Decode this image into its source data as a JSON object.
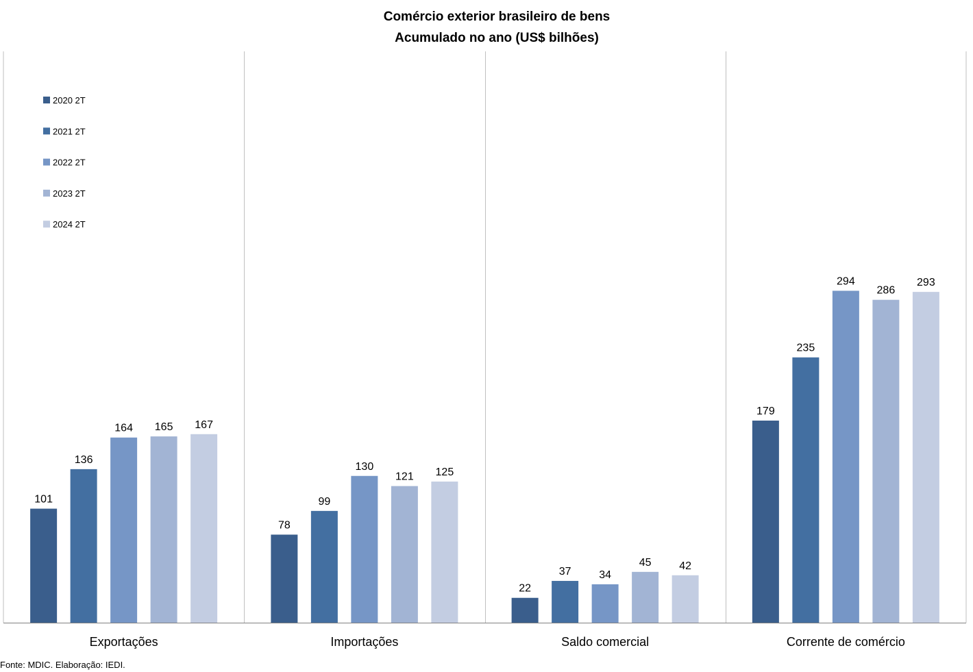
{
  "chart_data": {
    "type": "bar",
    "title": "Comércio exterior brasileiro de bens",
    "subtitle": "Acumulado no ano (US$ bilhões)",
    "categories": [
      "Exportações",
      "Importações",
      "Saldo comercial",
      "Corrente de comércio"
    ],
    "series": [
      {
        "name": "2020 2T",
        "color": "#3A5E8C",
        "values": [
          101,
          78,
          22,
          179
        ]
      },
      {
        "name": "2021 2T",
        "color": "#436FA1",
        "values": [
          136,
          99,
          37,
          235
        ]
      },
      {
        "name": "2022 2T",
        "color": "#7696C6",
        "values": [
          164,
          130,
          34,
          294
        ]
      },
      {
        "name": "2023 2T",
        "color": "#A2B4D4",
        "values": [
          165,
          121,
          45,
          286
        ]
      },
      {
        "name": "2024 2T",
        "color": "#C3CDE2",
        "values": [
          167,
          125,
          42,
          293
        ]
      }
    ],
    "ylim": [
      0,
      310
    ],
    "grid": false,
    "legend_position": "top-left",
    "data_labels": true,
    "source": "Fonte: MDIC. Elaboração: IEDI."
  }
}
